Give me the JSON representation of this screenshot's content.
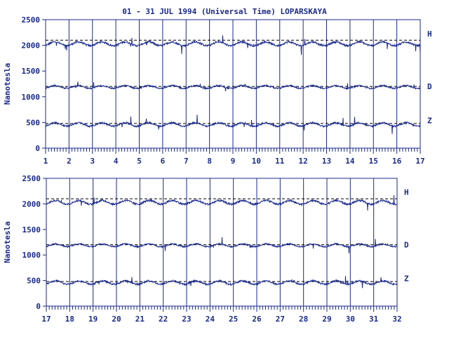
{
  "chart_data": [
    {
      "type": "line",
      "title": "01 - 31 JUL 1994 (Universal Time) LOPARSKAYA",
      "ylabel": "Nanotesla",
      "xlabel": "",
      "xlim": [
        1,
        17
      ],
      "ylim": [
        0,
        2500
      ],
      "x_ticks": [
        1,
        2,
        3,
        4,
        5,
        6,
        7,
        8,
        9,
        10,
        11,
        12,
        13,
        14,
        15,
        16,
        17
      ],
      "y_ticks": [
        0,
        500,
        1000,
        1500,
        2000,
        2500
      ],
      "grid": "vertical-daily",
      "color": "#1a2a8c",
      "series": [
        {
          "name": "H",
          "baseline": 2100
        },
        {
          "name": "D",
          "baseline": 1200
        },
        {
          "name": "Z",
          "baseline": 480
        }
      ]
    },
    {
      "type": "line",
      "title": "",
      "ylabel": "Nanotesla",
      "xlabel": "",
      "xlim": [
        17,
        32
      ],
      "ylim": [
        0,
        2500
      ],
      "x_ticks": [
        17,
        18,
        19,
        20,
        21,
        22,
        23,
        24,
        25,
        26,
        27,
        28,
        29,
        30,
        31,
        32
      ],
      "y_ticks": [
        0,
        500,
        1000,
        1500,
        2000,
        2500
      ],
      "grid": "vertical-daily",
      "color": "#1a2a8c",
      "series": [
        {
          "name": "H",
          "baseline": 2100
        },
        {
          "name": "D",
          "baseline": 1200
        },
        {
          "name": "Z",
          "baseline": 480
        }
      ]
    }
  ]
}
